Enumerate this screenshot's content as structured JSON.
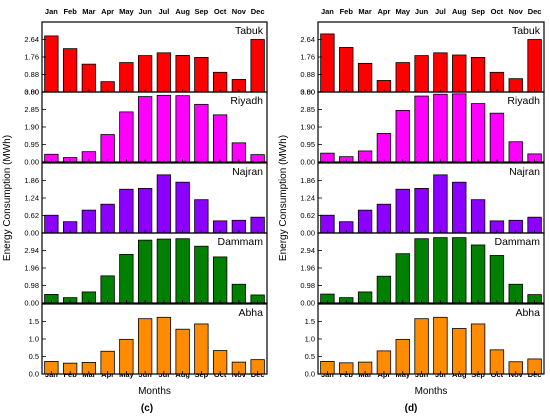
{
  "figure": {
    "ylabel": "Energy Consumption (MWh)",
    "xlabel": "Months"
  },
  "chart_data": [
    {
      "type": "bar",
      "caption": "(c)",
      "categories": [
        "Jan",
        "Feb",
        "Mar",
        "Apr",
        "May",
        "Jun",
        "Jul",
        "Aug",
        "Sep",
        "Oct",
        "Nov",
        "Dec"
      ],
      "xlabel": "Months",
      "ylabel": "Energy Consumption (MWh)",
      "panels": [
        {
          "city": "Tabuk",
          "color": "#ff0000",
          "ylim": [
            0,
            3.52
          ],
          "ticks": [
            "0.00",
            "0.88",
            "1.76",
            "2.64",
            "3.52"
          ],
          "ticklabels": [
            "0.00",
            "0.88",
            "1.76",
            "2.64"
          ],
          "values": [
            2.82,
            2.18,
            1.4,
            0.52,
            1.48,
            1.83,
            1.97,
            1.84,
            1.74,
            0.99,
            0.63,
            2.64
          ]
        },
        {
          "city": "Riyadh",
          "color": "#ff00ff",
          "ylim": [
            0,
            3.8
          ],
          "ticks": [
            "0.00",
            "0.95",
            "1.90",
            "2.85",
            "3.80"
          ],
          "ticklabels": [
            "0.00",
            "0.95",
            "1.90",
            "2.85",
            "3.80"
          ],
          "values": [
            0.42,
            0.24,
            0.56,
            1.49,
            2.72,
            3.55,
            3.62,
            3.6,
            3.13,
            2.56,
            1.04,
            0.4
          ]
        },
        {
          "city": "Najran",
          "color": "#8b00ff",
          "ylim": [
            0,
            2.48
          ],
          "ticks": [
            "0.00",
            "0.62",
            "1.24",
            "1.86",
            "2.48"
          ],
          "ticklabels": [
            "0.00",
            "0.62",
            "1.24",
            "1.86"
          ],
          "values": [
            0.63,
            0.4,
            0.81,
            1.02,
            1.55,
            1.58,
            2.06,
            1.8,
            1.18,
            0.43,
            0.45,
            0.56
          ]
        },
        {
          "city": "Dammam",
          "color": "#008000",
          "ylim": [
            0,
            3.92
          ],
          "ticks": [
            "0.00",
            "0.98",
            "1.96",
            "2.94",
            "3.92"
          ],
          "ticklabels": [
            "0.00",
            "0.98",
            "1.96",
            "2.94"
          ],
          "values": [
            0.48,
            0.3,
            0.62,
            1.52,
            2.72,
            3.52,
            3.58,
            3.6,
            3.18,
            2.58,
            1.05,
            0.45
          ]
        },
        {
          "city": "Abha",
          "color": "#ff8c00",
          "ylim": [
            0,
            2.0
          ],
          "ticks": [
            "0.0",
            "0.5",
            "1.0",
            "1.5",
            "2.0"
          ],
          "ticklabels": [
            "0.0",
            "0.5",
            "1.0",
            "1.5"
          ],
          "values": [
            0.36,
            0.31,
            0.33,
            0.65,
            0.99,
            1.58,
            1.62,
            1.28,
            1.43,
            0.67,
            0.34,
            0.41
          ]
        }
      ]
    },
    {
      "type": "bar",
      "caption": "(d)",
      "categories": [
        "Jan",
        "Feb",
        "Mar",
        "Apr",
        "May",
        "Jun",
        "Jul",
        "Aug",
        "Sep",
        "Oct",
        "Nov",
        "Dec"
      ],
      "xlabel": "Months",
      "ylabel": "Energy Consumption (MWh)",
      "panels": [
        {
          "city": "Tabuk",
          "color": "#ff0000",
          "ylim": [
            0,
            3.52
          ],
          "ticks": [
            "0.00",
            "0.88",
            "1.76",
            "2.64",
            "3.52"
          ],
          "ticklabels": [
            "0.00",
            "0.88",
            "1.76",
            "2.64"
          ],
          "values": [
            2.92,
            2.24,
            1.44,
            0.58,
            1.48,
            1.83,
            1.97,
            1.86,
            1.74,
            0.99,
            0.67,
            2.64
          ]
        },
        {
          "city": "Riyadh",
          "color": "#ff00ff",
          "ylim": [
            0,
            3.8
          ],
          "ticks": [
            "0.00",
            "0.95",
            "1.90",
            "2.85",
            "3.80"
          ],
          "ticklabels": [
            "0.00",
            "0.95",
            "1.90",
            "2.85",
            "3.80"
          ],
          "values": [
            0.48,
            0.29,
            0.6,
            1.55,
            2.8,
            3.58,
            3.68,
            3.7,
            3.17,
            2.65,
            1.1,
            0.44
          ]
        },
        {
          "city": "Najran",
          "color": "#8b00ff",
          "ylim": [
            0,
            2.48
          ],
          "ticks": [
            "0.00",
            "0.62",
            "1.24",
            "1.86",
            "2.48"
          ],
          "ticklabels": [
            "0.00",
            "0.62",
            "1.24",
            "1.86"
          ],
          "values": [
            0.63,
            0.4,
            0.81,
            1.02,
            1.55,
            1.58,
            2.06,
            1.8,
            1.18,
            0.43,
            0.45,
            0.56
          ]
        },
        {
          "city": "Dammam",
          "color": "#008000",
          "ylim": [
            0,
            3.92
          ],
          "ticks": [
            "0.00",
            "0.98",
            "1.96",
            "2.94",
            "3.92"
          ],
          "ticklabels": [
            "0.00",
            "0.98",
            "1.96",
            "2.94"
          ],
          "values": [
            0.5,
            0.3,
            0.62,
            1.5,
            2.76,
            3.6,
            3.66,
            3.66,
            3.25,
            2.66,
            1.05,
            0.47
          ]
        },
        {
          "city": "Abha",
          "color": "#ff8c00",
          "ylim": [
            0,
            2.0
          ],
          "ticks": [
            "0.0",
            "0.5",
            "1.0",
            "1.5",
            "2.0"
          ],
          "ticklabels": [
            "0.0",
            "0.5",
            "1.0",
            "1.5"
          ],
          "values": [
            0.36,
            0.32,
            0.34,
            0.66,
            0.99,
            1.58,
            1.62,
            1.3,
            1.43,
            0.69,
            0.35,
            0.43
          ]
        }
      ]
    }
  ]
}
